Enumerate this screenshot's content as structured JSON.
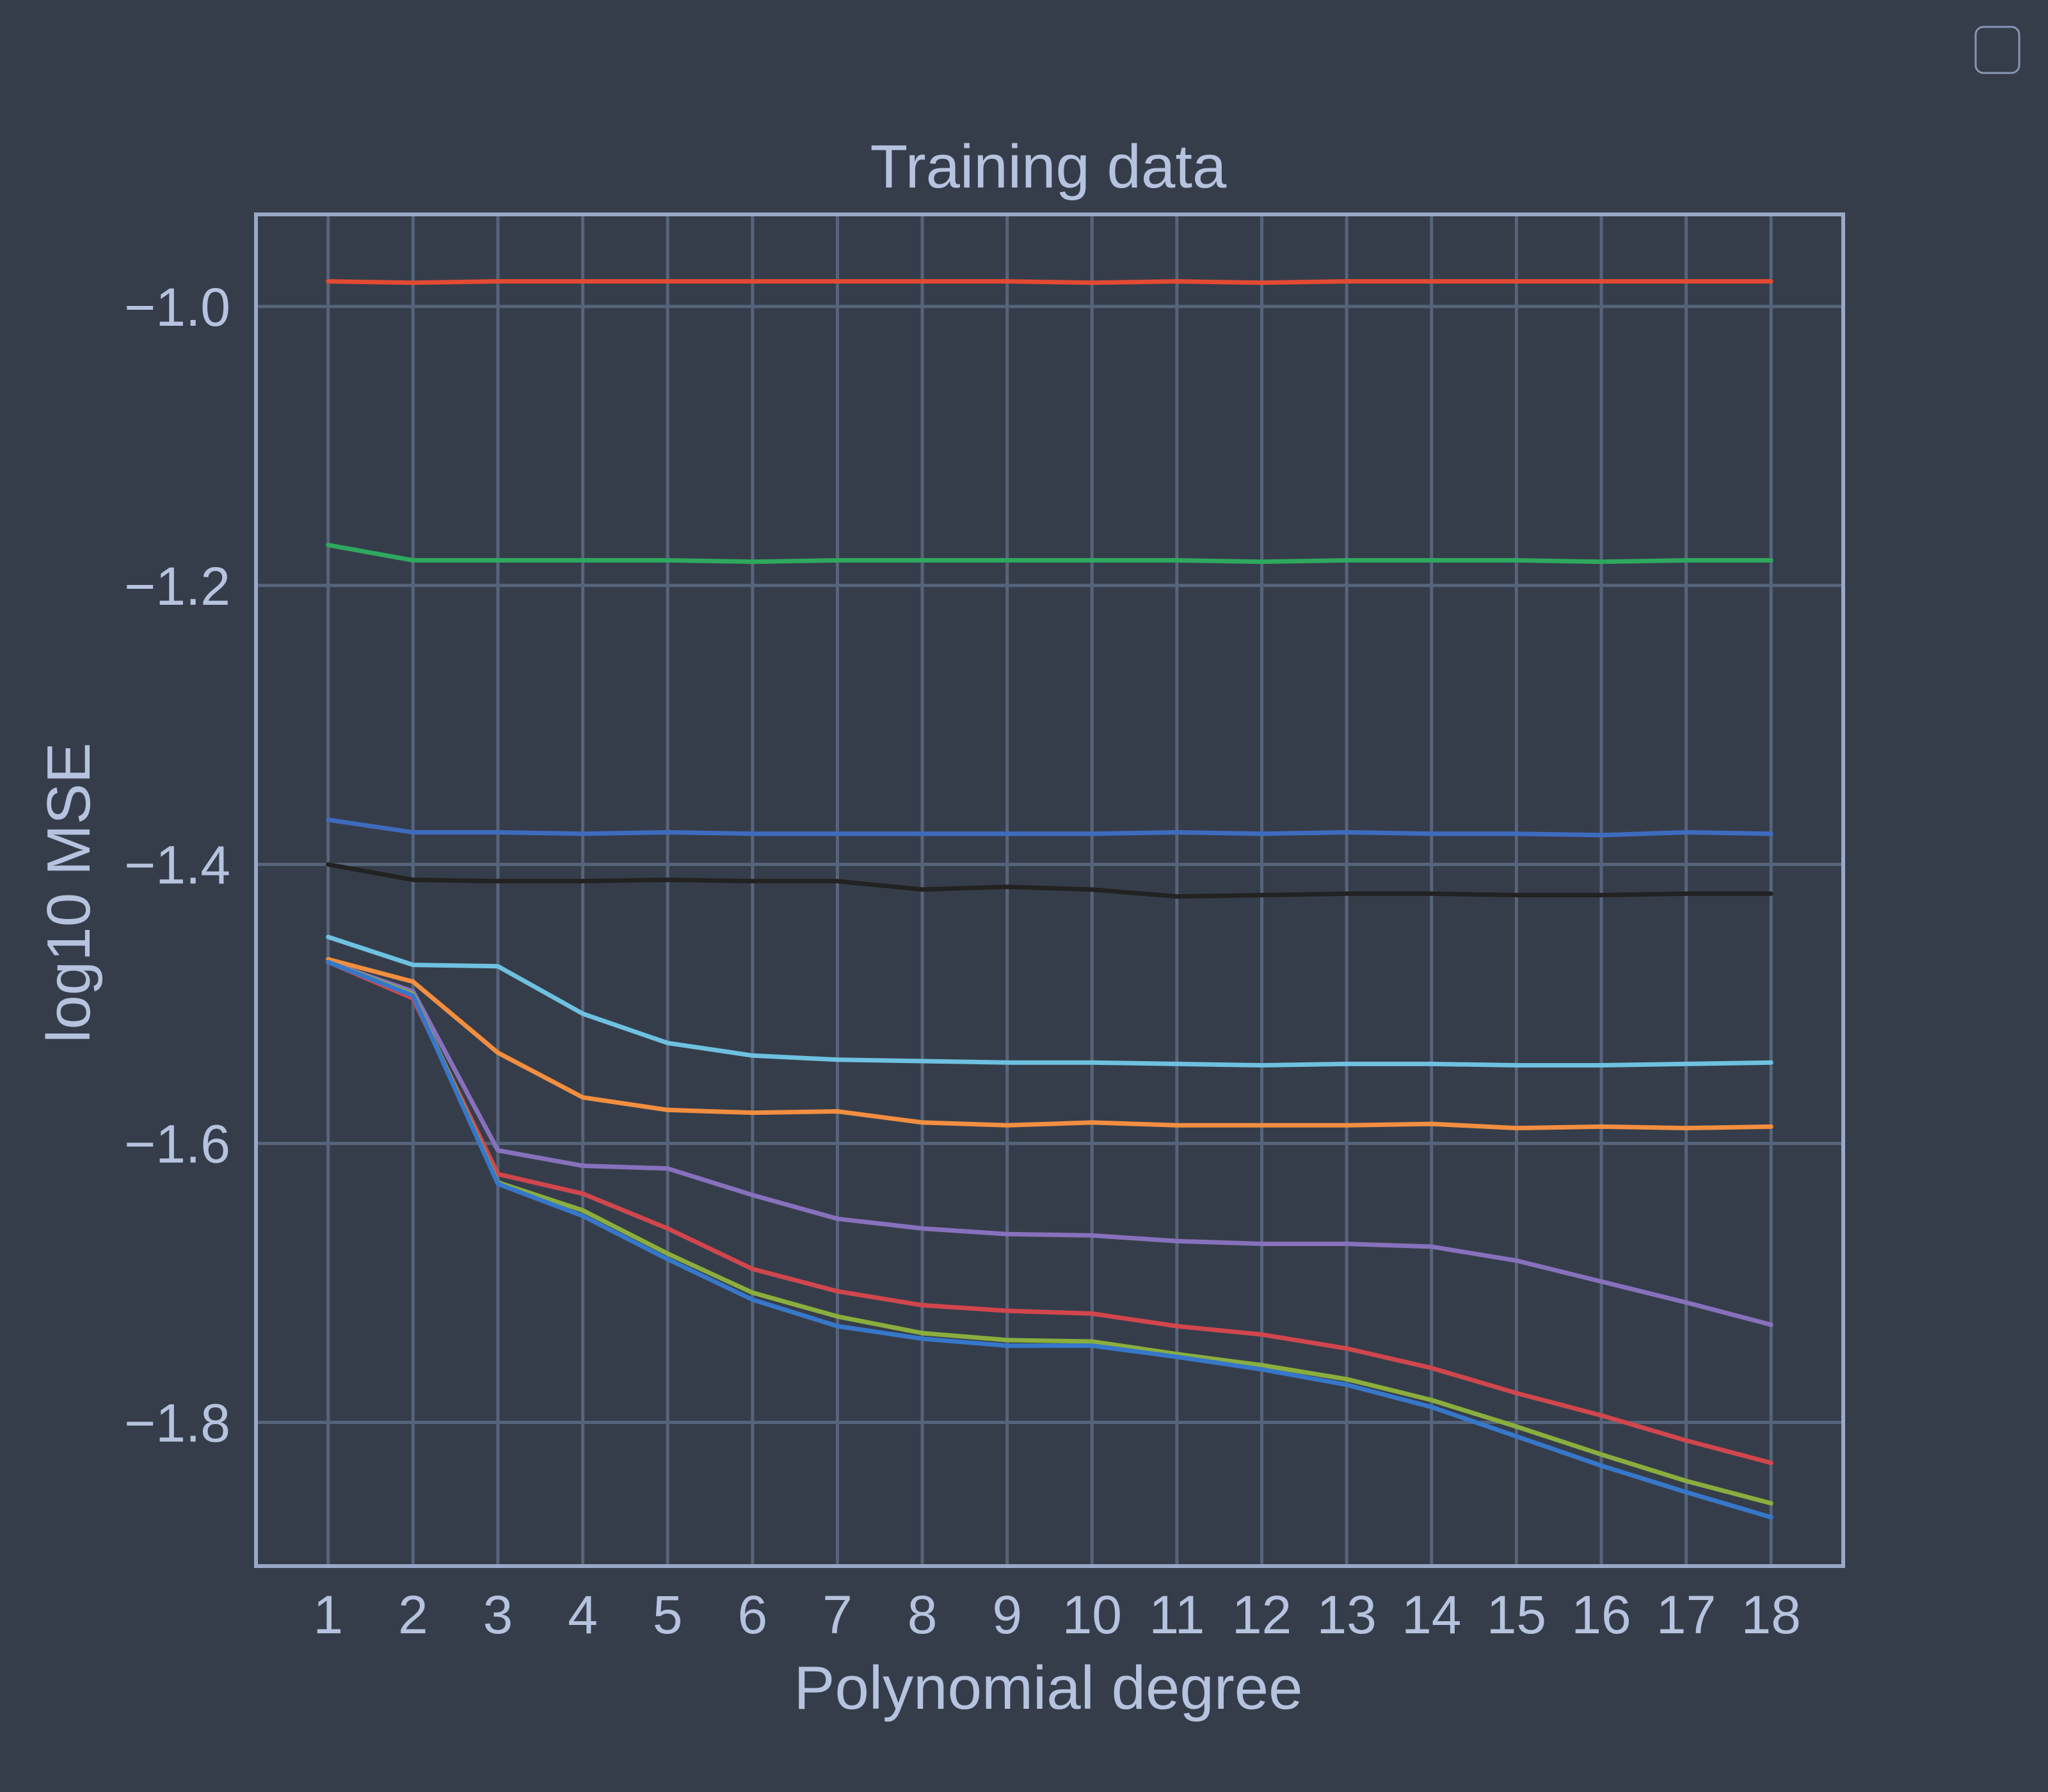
{
  "colors": {
    "background": "#363d4a",
    "grid": "#56647b",
    "frame": "#98a8c6",
    "text": "#b6c3df",
    "legend_border": "#8796b4"
  },
  "chart_data": {
    "type": "line",
    "title": "Training data",
    "xlabel": "Polynomial degree",
    "ylabel": "log10 MSE",
    "xlim": [
      0.15,
      18.85
    ],
    "ylim": [
      -1.903,
      -0.934
    ],
    "xticks": [
      1,
      2,
      3,
      4,
      5,
      6,
      7,
      8,
      9,
      10,
      11,
      12,
      13,
      14,
      15,
      16,
      17,
      18
    ],
    "xtick_labels": [
      "1",
      "2",
      "3",
      "4",
      "5",
      "6",
      "7",
      "8",
      "9",
      "10",
      "11",
      "12",
      "13",
      "14",
      "15",
      "16",
      "17",
      "18"
    ],
    "yticks": [
      -1.0,
      -1.2,
      -1.4,
      -1.6,
      -1.8
    ],
    "ytick_labels": [
      "−1.0",
      "−1.2",
      "−1.4",
      "−1.6",
      "−1.8"
    ],
    "grid": true,
    "legend": {
      "placement": "top-right",
      "entries": []
    },
    "x": [
      1,
      2,
      3,
      4,
      5,
      6,
      7,
      8,
      9,
      10,
      11,
      12,
      13,
      14,
      15,
      16,
      17,
      18
    ],
    "series": [
      {
        "color": "#e24a33",
        "values": [
          -0.982,
          -0.983,
          -0.982,
          -0.982,
          -0.982,
          -0.982,
          -0.982,
          -0.982,
          -0.982,
          -0.983,
          -0.982,
          -0.983,
          -0.982,
          -0.982,
          -0.982,
          -0.982,
          -0.982,
          -0.982
        ]
      },
      {
        "color": "#2ea85e",
        "values": [
          -1.171,
          -1.182,
          -1.182,
          -1.182,
          -1.182,
          -1.183,
          -1.182,
          -1.182,
          -1.182,
          -1.182,
          -1.182,
          -1.183,
          -1.182,
          -1.182,
          -1.182,
          -1.183,
          -1.182,
          -1.182
        ]
      },
      {
        "color": "#3e6bbf",
        "values": [
          -1.368,
          -1.377,
          -1.377,
          -1.378,
          -1.377,
          -1.378,
          -1.378,
          -1.378,
          -1.378,
          -1.378,
          -1.377,
          -1.378,
          -1.377,
          -1.378,
          -1.378,
          -1.379,
          -1.377,
          -1.378
        ]
      },
      {
        "color": "#222222",
        "values": [
          -1.4,
          -1.411,
          -1.412,
          -1.412,
          -1.411,
          -1.412,
          -1.412,
          -1.418,
          -1.416,
          -1.418,
          -1.423,
          -1.422,
          -1.421,
          -1.421,
          -1.422,
          -1.422,
          -1.421,
          -1.421
        ]
      },
      {
        "color": "#6ec1e0",
        "values": [
          -1.452,
          -1.472,
          -1.473,
          -1.507,
          -1.528,
          -1.537,
          -1.54,
          -1.541,
          -1.542,
          -1.542,
          -1.543,
          -1.544,
          -1.543,
          -1.543,
          -1.544,
          -1.544,
          -1.543,
          -1.542
        ]
      },
      {
        "color": "#f28e40",
        "values": [
          -1.468,
          -1.484,
          -1.535,
          -1.567,
          -1.576,
          -1.578,
          -1.577,
          -1.585,
          -1.587,
          -1.585,
          -1.587,
          -1.587,
          -1.587,
          -1.586,
          -1.589,
          -1.588,
          -1.589,
          -1.588
        ]
      },
      {
        "color": "#8771bd",
        "values": [
          -1.47,
          -1.491,
          -1.605,
          -1.616,
          -1.618,
          -1.637,
          -1.654,
          -1.661,
          -1.665,
          -1.666,
          -1.67,
          -1.672,
          -1.672,
          -1.674,
          -1.684,
          -1.699,
          -1.714,
          -1.73
        ]
      },
      {
        "color": "#d1464d",
        "values": [
          -1.47,
          -1.496,
          -1.622,
          -1.636,
          -1.661,
          -1.69,
          -1.706,
          -1.716,
          -1.72,
          -1.722,
          -1.731,
          -1.737,
          -1.747,
          -1.761,
          -1.779,
          -1.795,
          -1.813,
          -1.829
        ]
      },
      {
        "color": "#8aae3e",
        "values": [
          -1.47,
          -1.493,
          -1.628,
          -1.648,
          -1.679,
          -1.707,
          -1.724,
          -1.736,
          -1.741,
          -1.742,
          -1.751,
          -1.759,
          -1.769,
          -1.784,
          -1.803,
          -1.823,
          -1.842,
          -1.858
        ]
      },
      {
        "color": "#3677c9",
        "values": [
          -1.47,
          -1.494,
          -1.629,
          -1.652,
          -1.683,
          -1.712,
          -1.731,
          -1.74,
          -1.745,
          -1.745,
          -1.753,
          -1.762,
          -1.773,
          -1.789,
          -1.81,
          -1.831,
          -1.85,
          -1.868
        ]
      }
    ]
  }
}
